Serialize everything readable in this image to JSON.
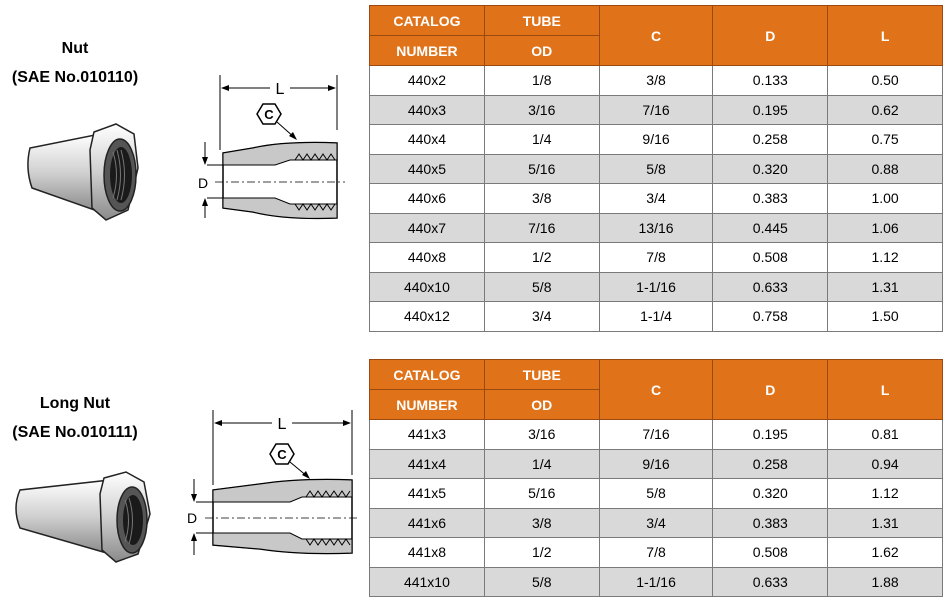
{
  "colors": {
    "header_bg": "#e0731a",
    "header_text": "#ffffff",
    "alt_row": "#d9d9d9"
  },
  "headers": {
    "catalog": "CATALOG",
    "number": "NUMBER",
    "tube": "TUBE",
    "od": "OD",
    "c": "C",
    "d": "D",
    "l": "L"
  },
  "sections": [
    {
      "title_line1": "Nut",
      "title_line2": "(SAE No.010110)",
      "diagram": {
        "dim_l": "L",
        "dim_c": "C",
        "dim_d": "D"
      },
      "rows": [
        [
          "440x2",
          "1/8",
          "3/8",
          "0.133",
          "0.50"
        ],
        [
          "440x3",
          "3/16",
          "7/16",
          "0.195",
          "0.62"
        ],
        [
          "440x4",
          "1/4",
          "9/16",
          "0.258",
          "0.75"
        ],
        [
          "440x5",
          "5/16",
          "5/8",
          "0.320",
          "0.88"
        ],
        [
          "440x6",
          "3/8",
          "3/4",
          "0.383",
          "1.00"
        ],
        [
          "440x7",
          "7/16",
          "13/16",
          "0.445",
          "1.06"
        ],
        [
          "440x8",
          "1/2",
          "7/8",
          "0.508",
          "1.12"
        ],
        [
          "440x10",
          "5/8",
          "1-1/16",
          "0.633",
          "1.31"
        ],
        [
          "440x12",
          "3/4",
          "1-1/4",
          "0.758",
          "1.50"
        ]
      ]
    },
    {
      "title_line1": "Long Nut",
      "title_line2": "(SAE No.010111)",
      "diagram": {
        "dim_l": "L",
        "dim_c": "C",
        "dim_d": "D"
      },
      "rows": [
        [
          "441x3",
          "3/16",
          "7/16",
          "0.195",
          "0.81"
        ],
        [
          "441x4",
          "1/4",
          "9/16",
          "0.258",
          "0.94"
        ],
        [
          "441x5",
          "5/16",
          "5/8",
          "0.320",
          "1.12"
        ],
        [
          "441x6",
          "3/8",
          "3/4",
          "0.383",
          "1.31"
        ],
        [
          "441x8",
          "1/2",
          "7/8",
          "0.508",
          "1.62"
        ],
        [
          "441x10",
          "5/8",
          "1-1/16",
          "0.633",
          "1.88"
        ]
      ]
    }
  ]
}
